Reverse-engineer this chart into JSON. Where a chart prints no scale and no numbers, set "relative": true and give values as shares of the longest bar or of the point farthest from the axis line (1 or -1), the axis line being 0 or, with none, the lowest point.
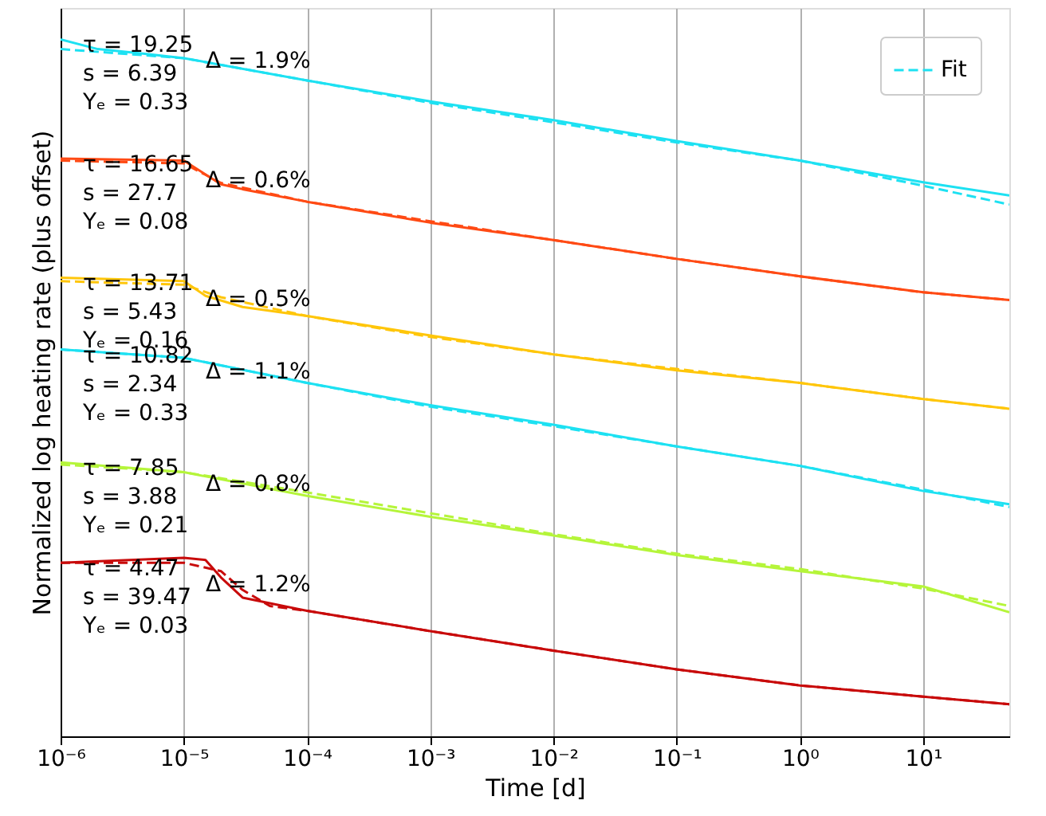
{
  "chart_data": {
    "type": "line",
    "relative": true,
    "xlabel": "Time [d]",
    "ylabel": "Normalized log heating rate (plus offset)",
    "log": "x",
    "grid": "x",
    "legend": "top right",
    "tick_labels": "x",
    "xlim": [
      1e-06,
      50
    ],
    "xticks": [
      {
        "value": 1e-06,
        "label": "10⁻⁶"
      },
      {
        "value": 1e-05,
        "label": "10⁻⁵"
      },
      {
        "value": 0.0001,
        "label": "10⁻⁴"
      },
      {
        "value": 0.001,
        "label": "10⁻³"
      },
      {
        "value": 0.01,
        "label": "10⁻²"
      },
      {
        "value": 0.1,
        "label": "10⁻¹"
      },
      {
        "value": 1,
        "label": "10⁰"
      },
      {
        "value": 10,
        "label": "10¹"
      }
    ],
    "series": [
      {
        "color": "#1de1f2",
        "line_style": "solid",
        "x": [
          1e-06,
          2e-06,
          5e-06,
          1e-05,
          0.0001,
          0.001,
          0.01,
          0.1,
          1,
          10,
          50
        ],
        "values": [
          1.0,
          0.986,
          0.979,
          0.973,
          0.941,
          0.911,
          0.884,
          0.854,
          0.826,
          0.795,
          0.776
        ]
      },
      {
        "name": "Fit",
        "color": "#1de1f2",
        "line_style": "dashed",
        "x": [
          1e-06,
          1e-05,
          0.0001,
          0.001,
          0.01,
          0.1,
          1,
          10,
          50
        ],
        "values": [
          0.986,
          0.973,
          0.941,
          0.909,
          0.881,
          0.852,
          0.826,
          0.79,
          0.763
        ]
      },
      {
        "color": "#ff4a14",
        "line_style": "solid",
        "x": [
          1e-06,
          1e-05,
          2e-05,
          3e-05,
          0.0001,
          0.001,
          0.01,
          0.1,
          1,
          10,
          50
        ],
        "values": [
          0.829,
          0.826,
          0.792,
          0.785,
          0.767,
          0.737,
          0.712,
          0.685,
          0.66,
          0.637,
          0.626
        ]
      },
      {
        "color": "#ff4a14",
        "line_style": "dashed",
        "x": [
          1e-06,
          1e-05,
          2e-05,
          0.0001,
          0.001,
          0.01,
          0.1,
          1,
          10,
          50
        ],
        "values": [
          0.826,
          0.822,
          0.794,
          0.767,
          0.739,
          0.712,
          0.685,
          0.66,
          0.637,
          0.626
        ]
      },
      {
        "color": "#ffc60a",
        "line_style": "solid",
        "x": [
          1e-06,
          1e-05,
          1.5e-05,
          3e-05,
          0.0001,
          0.001,
          0.01,
          0.1,
          1,
          10,
          50
        ],
        "values": [
          0.658,
          0.653,
          0.632,
          0.616,
          0.603,
          0.575,
          0.548,
          0.525,
          0.507,
          0.484,
          0.47
        ]
      },
      {
        "color": "#ffc60a",
        "line_style": "dashed",
        "x": [
          1e-06,
          1e-05,
          2e-05,
          0.0001,
          0.001,
          0.01,
          0.1,
          1,
          10,
          50
        ],
        "values": [
          0.653,
          0.648,
          0.63,
          0.603,
          0.573,
          0.548,
          0.527,
          0.507,
          0.484,
          0.47
        ]
      },
      {
        "color": "#1de1f2",
        "line_style": "solid",
        "x": [
          1e-06,
          1e-05,
          0.0001,
          0.001,
          0.01,
          0.1,
          1,
          10,
          50
        ],
        "values": [
          0.555,
          0.543,
          0.507,
          0.475,
          0.447,
          0.416,
          0.388,
          0.352,
          0.333
        ]
      },
      {
        "color": "#1de1f2",
        "line_style": "dashed",
        "x": [
          1e-06,
          1e-05,
          0.0001,
          0.001,
          0.01,
          0.1,
          1,
          10,
          50
        ],
        "values": [
          0.555,
          0.543,
          0.507,
          0.473,
          0.445,
          0.416,
          0.388,
          0.354,
          0.329
        ]
      },
      {
        "color": "#b5f53a",
        "line_style": "solid",
        "x": [
          1e-06,
          1e-05,
          0.0001,
          0.001,
          0.01,
          0.1,
          1,
          10,
          50
        ],
        "values": [
          0.393,
          0.379,
          0.345,
          0.315,
          0.288,
          0.26,
          0.237,
          0.215,
          0.178
        ]
      },
      {
        "color": "#b5f53a",
        "line_style": "dashed",
        "x": [
          1e-06,
          1e-05,
          0.0001,
          0.001,
          0.01,
          0.1,
          1,
          10,
          50
        ],
        "values": [
          0.39,
          0.379,
          0.35,
          0.32,
          0.29,
          0.262,
          0.24,
          0.212,
          0.187
        ]
      },
      {
        "color": "#c80a0a",
        "line_style": "solid",
        "x": [
          1e-06,
          1e-05,
          1.5e-05,
          2e-05,
          3e-05,
          0.0001,
          0.001,
          0.01,
          0.1,
          1,
          10,
          50
        ],
        "values": [
          0.249,
          0.256,
          0.253,
          0.228,
          0.199,
          0.18,
          0.151,
          0.123,
          0.096,
          0.073,
          0.057,
          0.046
        ]
      },
      {
        "color": "#c80a0a",
        "line_style": "dashed",
        "x": [
          1e-06,
          1e-05,
          2e-05,
          3e-05,
          5e-05,
          0.0001,
          0.001,
          0.01,
          0.1,
          1,
          10,
          50
        ],
        "values": [
          0.249,
          0.249,
          0.237,
          0.21,
          0.187,
          0.18,
          0.151,
          0.123,
          0.096,
          0.073,
          0.057,
          0.046
        ]
      }
    ],
    "annotations": [
      "τ = 19.25",
      "s = 6.39",
      "Yₑ = 0.33",
      "Δ = 1.9%",
      "τ = 16.65",
      "s = 27.7",
      "Yₑ = 0.08",
      "Δ = 0.6%",
      "τ = 13.71",
      "s = 5.43",
      "Yₑ = 0.16",
      "Δ = 0.5%",
      "τ = 10.82",
      "s = 2.34",
      "Yₑ = 0.33",
      "Δ = 1.1%",
      "τ = 7.85",
      "s = 3.88",
      "Yₑ = 0.21",
      "Δ = 0.8%",
      "τ = 4.47",
      "s = 39.47",
      "Yₑ = 0.03",
      "Δ = 1.2%"
    ]
  }
}
